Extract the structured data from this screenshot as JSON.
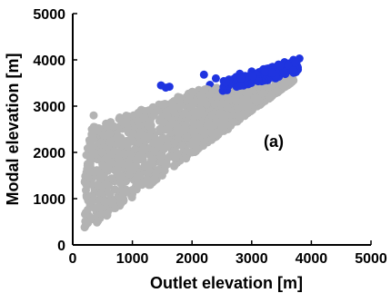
{
  "chart_data": {
    "type": "scatter",
    "title": "",
    "xlabel": "Outlet elevation [m]",
    "ylabel": "Modal elevation [m]",
    "annotation": "(a)",
    "xlim": [
      0,
      5000
    ],
    "ylim": [
      0,
      5000
    ],
    "xticks": [
      "0",
      "1000",
      "2000",
      "3000",
      "4000",
      "5000"
    ],
    "yticks": [
      "0",
      "1000",
      "2000",
      "3000",
      "4000",
      "5000"
    ],
    "grid": false,
    "legend": "none",
    "colors": {
      "series_gray": "#b3b3b3",
      "series_blue": "#1f34e0"
    },
    "series": [
      {
        "color_key": "series_gray",
        "points": [
          [
            200,
            380
          ],
          [
            220,
            700
          ],
          [
            250,
            1000
          ],
          [
            260,
            1300
          ],
          [
            280,
            1600
          ],
          [
            300,
            1900
          ],
          [
            300,
            2200
          ],
          [
            320,
            2500
          ],
          [
            350,
            2800
          ],
          [
            400,
            700
          ],
          [
            450,
            1200
          ],
          [
            500,
            1600
          ],
          [
            600,
            2000
          ],
          [
            700,
            2400
          ],
          [
            800,
            900
          ],
          [
            900,
            1400
          ],
          [
            1000,
            1800
          ],
          [
            1100,
            2300
          ],
          [
            1200,
            2700
          ],
          [
            1300,
            1300
          ],
          [
            1400,
            1800
          ],
          [
            1500,
            2300
          ],
          [
            1600,
            2800
          ],
          [
            1700,
            1700
          ],
          [
            1800,
            2200
          ],
          [
            1900,
            2700
          ],
          [
            2000,
            3000
          ],
          [
            2100,
            2100
          ],
          [
            2200,
            2600
          ],
          [
            2300,
            3000
          ],
          [
            2400,
            2400
          ],
          [
            2500,
            2800
          ],
          [
            2600,
            3100
          ],
          [
            2700,
            2700
          ],
          [
            2800,
            3000
          ],
          [
            2900,
            3200
          ],
          [
            3000,
            3000
          ],
          [
            3100,
            3300
          ],
          [
            3200,
            3300
          ],
          [
            3300,
            3400
          ],
          [
            3400,
            3500
          ],
          [
            3500,
            3550
          ],
          [
            3600,
            3650
          ],
          [
            700,
            900
          ],
          [
            1500,
            1500
          ],
          [
            2600,
            2500
          ],
          [
            3100,
            3100
          ],
          [
            350,
            1100
          ],
          [
            700,
            1700
          ],
          [
            1200,
            2100
          ],
          [
            1800,
            2600
          ],
          [
            2300,
            2800
          ],
          [
            2800,
            3200
          ],
          [
            1000,
            1100
          ],
          [
            2000,
            2000
          ],
          [
            3000,
            3200
          ],
          [
            600,
            1400
          ],
          [
            1300,
            2400
          ],
          [
            1700,
            2900
          ],
          [
            3700,
            3700
          ]
        ]
      },
      {
        "color_key": "series_blue",
        "points": [
          [
            1480,
            3450
          ],
          [
            1560,
            3400
          ],
          [
            1620,
            3420
          ],
          [
            2200,
            3680
          ],
          [
            2300,
            3460
          ],
          [
            2400,
            3600
          ],
          [
            2450,
            3350
          ],
          [
            2550,
            3500
          ],
          [
            2650,
            3400
          ],
          [
            2750,
            3550
          ],
          [
            2800,
            3700
          ],
          [
            2850,
            3350
          ],
          [
            2900,
            3600
          ],
          [
            2950,
            3450
          ],
          [
            3000,
            3750
          ],
          [
            3050,
            3550
          ],
          [
            3100,
            3400
          ],
          [
            3150,
            3650
          ],
          [
            3200,
            3800
          ],
          [
            3250,
            3500
          ],
          [
            3300,
            3700
          ],
          [
            3350,
            3850
          ],
          [
            3400,
            3600
          ],
          [
            3450,
            3900
          ],
          [
            3500,
            3750
          ],
          [
            3550,
            3950
          ],
          [
            3600,
            3800
          ],
          [
            3650,
            3900
          ],
          [
            3700,
            4000
          ],
          [
            3750,
            3950
          ],
          [
            3800,
            4030
          ],
          [
            3580,
            3700
          ],
          [
            3200,
            3350
          ],
          [
            2950,
            3300
          ],
          [
            3300,
            3400
          ]
        ]
      }
    ]
  }
}
